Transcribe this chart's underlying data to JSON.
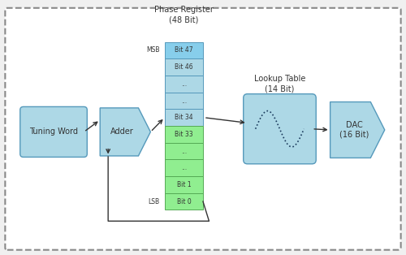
{
  "title": "Phase Register\n(48 Bit)",
  "bg_color": "#f5f5f5",
  "border_color": "#888888",
  "block_blue_light": "#87CEEB",
  "block_blue_fill": "#add8e6",
  "block_green_fill": "#90EE90",
  "block_green_light": "#b2f0b2",
  "tuning_word_label": "Tuning Word",
  "adder_label": "Adder",
  "phase_reg_title": "Phase Register\n(48 Bit)",
  "lookup_title": "Lookup Table\n(14 Bit)",
  "dac_label": "DAC\n(16 Bit)",
  "msb_label": "MSB",
  "lsb_label": "LSB",
  "blue_bits": [
    "Bit 47",
    "Bit 46",
    "...",
    "...",
    "Bit 34"
  ],
  "green_bits": [
    "Bit 33",
    "...",
    "...",
    "Bit 1",
    "Bit 0"
  ],
  "arrow_color": "#333333",
  "text_color": "#333333",
  "font_size": 7,
  "title_font_size": 8
}
